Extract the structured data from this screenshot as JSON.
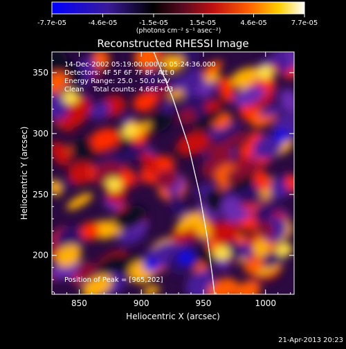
{
  "chart_data": {
    "type": "heatmap",
    "title": "Reconstructed RHESSI Image",
    "xlabel": "Heliocentric X (arcsec)",
    "ylabel": "Heliocentric Y (arcsec)",
    "xlim": [
      828,
      1023
    ],
    "ylim": [
      168,
      367
    ],
    "x_ticks": [
      "850",
      "900",
      "950",
      "1000"
    ],
    "x_tick_values": [
      850,
      900,
      950,
      1000
    ],
    "y_ticks": [
      "200",
      "250",
      "300",
      "350"
    ],
    "y_tick_values": [
      200,
      250,
      300,
      350
    ],
    "colorbar": {
      "range": [
        -7.7e-05,
        7.7e-05
      ],
      "tick_labels": [
        "-7.7e-05",
        "-4.6e-05",
        "-1.5e-05",
        "1.5e-05",
        "4.6e-05",
        "7.7e-05"
      ],
      "tick_values": [
        -7.7e-05,
        -4.6e-05,
        -1.5e-05,
        1.5e-05,
        4.6e-05,
        7.7e-05
      ],
      "units_label": "(photons cm⁻² s⁻¹ asec⁻²)",
      "colormap": [
        "#0000ff",
        "#3a1a9a",
        "#000000",
        "#5a0a20",
        "#c01010",
        "#ff6000",
        "#ffd000",
        "#ffffff"
      ]
    },
    "annotations": [
      "14-Dec-2002 05:19:00.000 to 05:24:36.000",
      "Detectors: 4F 5F 6F 7F 8F, Att 0",
      "Energy Range: 25.0 - 50.0 keV",
      "Clean    Total counts: 4.66E+03"
    ],
    "peak_label": "Position of Peak = [965,202]",
    "peak": [
      965,
      202
    ],
    "limb_curve": {
      "x": [
        910,
        925,
        938,
        947,
        953,
        957,
        959
      ],
      "y": [
        367,
        330,
        290,
        250,
        215,
        185,
        168
      ]
    },
    "grid": false
  },
  "footer": {
    "date": "21-Apr-2013 20:23"
  }
}
